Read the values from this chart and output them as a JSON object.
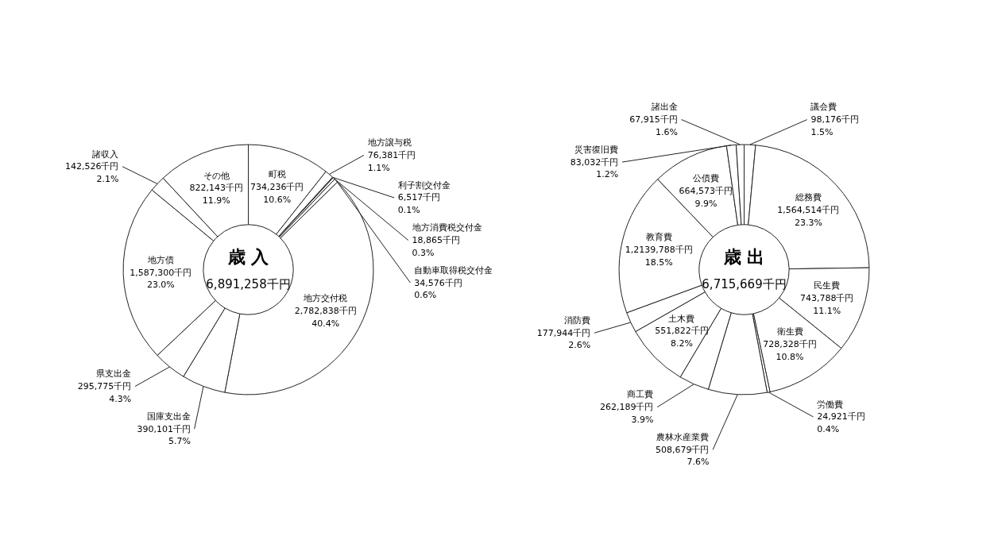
{
  "chart_data": [
    {
      "type": "donut",
      "title": "歳 入",
      "subtitle": "6,891,258千円",
      "categories": [
        "町税",
        "地方譲与税",
        "利子割交付金",
        "地方消費税交付金",
        "自動車取得税交付金",
        "地方交付税",
        "国庫支出金",
        "県支出金",
        "地方債",
        "諸収入",
        "その他"
      ],
      "values": [
        734236,
        76381,
        6517,
        18865,
        34576,
        2782838,
        390101,
        295775,
        1587300,
        142526,
        822143
      ],
      "colors": [
        "#ffffff",
        "#ffffff",
        "#ffffff",
        "#ffffff",
        "#ffffff",
        "#ffffff",
        "#ffffff",
        "#ffffff",
        "#ffffff",
        "#ffffff",
        "#ffffff"
      ],
      "value_labels": [
        "734,236千円 10.6%",
        "76,381千円 1.1%",
        "6,517千円 0.1%",
        "18,865千円 0.3%",
        "34,576千円 0.6%",
        "2,782,838千円 40.4%",
        "390,101千円 5.7%",
        "295,775千円 4.3%",
        "1,587,300千円 23.0%",
        "142,526千円 2.1%",
        "822,143千円 11.9%"
      ]
    },
    {
      "type": "donut",
      "title": "歳 出",
      "subtitle": "6,715,669千円",
      "categories": [
        "議会費",
        "総務費",
        "民生費",
        "衛生費",
        "労働費",
        "農林水産業費",
        "商工費",
        "土木費",
        "消防費",
        "教育費",
        "公債費",
        "災害復旧費",
        "諸出金"
      ],
      "values": [
        98176,
        1564514,
        743788,
        728328,
        24921,
        508679,
        262189,
        551822,
        177944,
        1239788,
        664573,
        83032,
        67915
      ],
      "colors": [
        "#ffffff",
        "#ffffff",
        "#ffffff",
        "#ffffff",
        "#ffffff",
        "#ffffff",
        "#ffffff",
        "#ffffff",
        "#ffffff",
        "#ffffff",
        "#ffffff",
        "#ffffff",
        "#ffffff"
      ],
      "value_labels": [
        "98,176千円 1.5%",
        "1,564,514千円 23.3%",
        "743,788千円 11.1%",
        "728,328千円 10.8%",
        "24,921千円 0.4%",
        "508,679千円 7.6%",
        "262,189千円 3.9%",
        "551,822千円 8.2%",
        "177,944千円 2.6%",
        "1,2139,788千円 18.5%",
        "664,573千円 9.9%",
        "83,032千円 1.2%",
        "67,915千円 1.6%"
      ]
    }
  ]
}
